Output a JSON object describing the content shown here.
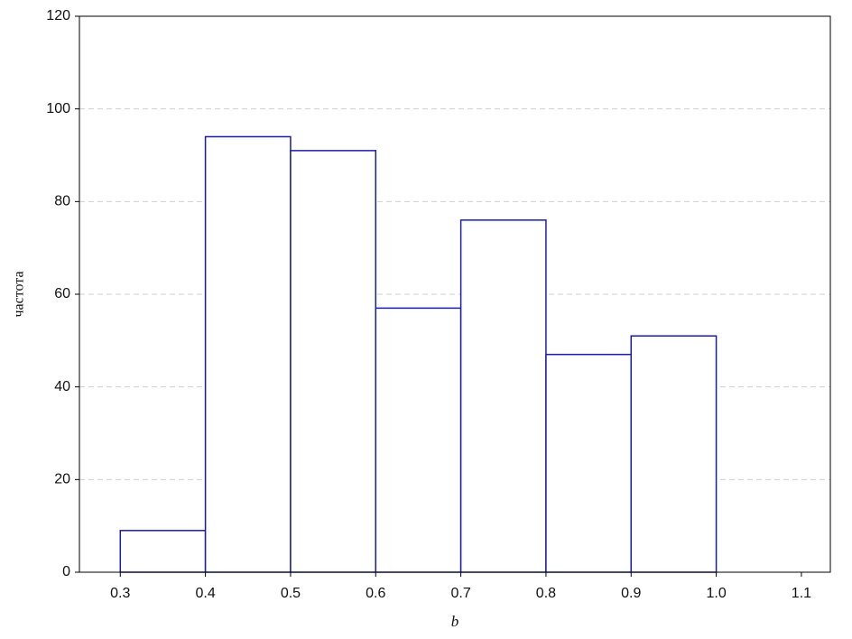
{
  "chart_data": {
    "type": "histogram",
    "x_label": "b",
    "y_label": "частота",
    "bins": [
      0.3,
      0.4,
      0.5,
      0.6,
      0.7,
      0.8,
      0.9,
      1.0
    ],
    "values": [
      9,
      94,
      91,
      57,
      76,
      47,
      51
    ],
    "color": "#1c1caa",
    "xlim": [
      0.252,
      1.134
    ],
    "xticks": [
      0.3,
      0.4,
      0.5,
      0.6,
      0.7,
      0.8,
      0.9,
      {
        "value": 1,
        "label": "1.0"
      },
      1.1
    ],
    "ylim": [
      0,
      120
    ],
    "yticks": [
      0,
      20,
      40,
      60,
      80,
      100,
      120
    ],
    "grid": true
  }
}
